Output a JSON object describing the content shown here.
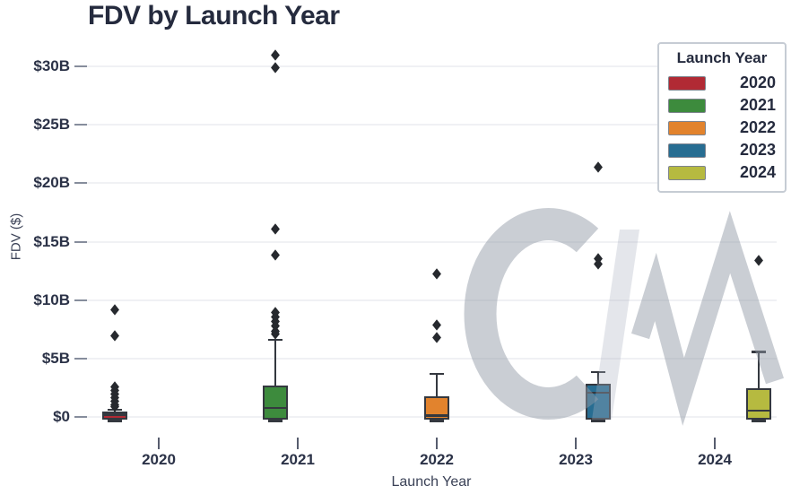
{
  "title": "FDV by Launch Year",
  "axes": {
    "x_label": "Launch Year",
    "y_label": "FDV ($)"
  },
  "legend": {
    "title": "Launch Year",
    "items": [
      {
        "label": "2020"
      },
      {
        "label": "2021"
      },
      {
        "label": "2022"
      },
      {
        "label": "2023"
      },
      {
        "label": "2024"
      }
    ]
  },
  "watermark": {
    "letters": "CM"
  },
  "chart_data": {
    "type": "boxplot",
    "title": "FDV by Launch Year",
    "xlabel": "Launch Year",
    "ylabel": "FDV ($)",
    "categories": [
      "2020",
      "2021",
      "2022",
      "2023",
      "2024"
    ],
    "units": "billions USD",
    "ytick_labels": [
      "$0",
      "$5B",
      "$10B",
      "$15B",
      "$20B",
      "$25B",
      "$30B"
    ],
    "ytick_values_billions": [
      0,
      5,
      10,
      15,
      20,
      25,
      30
    ],
    "ylim_billions": [
      -1.2,
      32.3
    ],
    "grid": "horizontal",
    "legend_position": "upper-right",
    "series": [
      {
        "year": "2020",
        "color": "#b12a34",
        "stats_billions": {
          "whislo": 0.0,
          "q1": 0.05,
          "med": 0.2,
          "q3": 0.45,
          "whishi": 0.65
        },
        "outliers_billions": [
          0.9,
          1.1,
          1.4,
          1.7,
          2.0,
          2.3,
          2.6,
          7.0,
          9.2
        ]
      },
      {
        "year": "2021",
        "color": "#3d8b3d",
        "stats_billions": {
          "whislo": 0.0,
          "q1": 0.1,
          "med": 0.8,
          "q3": 2.7,
          "whishi": 6.6
        },
        "outliers_billions": [
          7.1,
          7.4,
          7.8,
          8.2,
          8.6,
          9.0,
          13.9,
          16.1,
          29.9,
          31.0
        ]
      },
      {
        "year": "2022",
        "color": "#e2832d",
        "stats_billions": {
          "whislo": 0.0,
          "q1": 0.1,
          "med": 0.15,
          "q3": 1.8,
          "whishi": 3.7
        },
        "outliers_billions": [
          6.8,
          7.9,
          12.3
        ]
      },
      {
        "year": "2023",
        "color": "#276d92",
        "stats_billions": {
          "whislo": 0.0,
          "q1": 0.05,
          "med": 2.1,
          "q3": 2.85,
          "whishi": 3.85
        },
        "outliers_billions": [
          13.1,
          13.6,
          21.4
        ]
      },
      {
        "year": "2024",
        "color": "#b6ba40",
        "stats_billions": {
          "whislo": 0.0,
          "q1": 0.1,
          "med": 0.55,
          "q3": 2.45,
          "whishi": 5.6
        },
        "outliers_billions": [
          13.4
        ]
      }
    ]
  }
}
